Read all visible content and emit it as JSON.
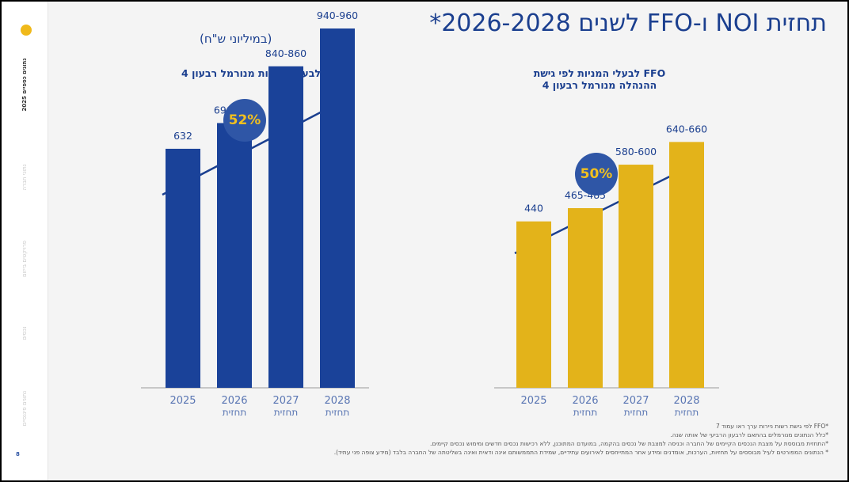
{
  "page": {
    "title": "תחזית NOI ו-FFO לשנים 2026-2028*",
    "subtitle": "(במיליוני ש\"ח)",
    "page_number": "8"
  },
  "sidebar": {
    "items": [
      {
        "label": "נתונים כספיים 2025"
      },
      {
        "label": "נתוני חברה"
      },
      {
        "label": "פרויקטים בייזום"
      },
      {
        "label": "נכסים"
      },
      {
        "label": "נתונים פיננסיים"
      }
    ]
  },
  "colors": {
    "noi": "#1a4299",
    "ffo": "#e3b31a",
    "text": "#1b3f8f",
    "badge": "#2f56a6"
  },
  "charts": {
    "noi": {
      "title": "NOI לבעלי המניות מנורמל רבעון 4",
      "growth_badge": "52%"
    },
    "ffo": {
      "title_line1": "FFO לבעלי המניות לפי גישת",
      "title_line2": "ההנהלה מנורמל רבעון 4",
      "growth_badge": "50%"
    }
  },
  "chart_data": [
    {
      "type": "bar",
      "title": "NOI לבעלי המניות מנורמל רבעון 4",
      "categories": [
        "2025",
        "2026",
        "2027",
        "2028"
      ],
      "sublabels": [
        "",
        "תחזית",
        "תחזית",
        "תחזית"
      ],
      "values": [
        632,
        700,
        850,
        950
      ],
      "value_labels": [
        "632",
        "690-710",
        "840-860",
        "940-960"
      ],
      "annotation": "52%"
    },
    {
      "type": "bar",
      "title": "FFO לבעלי המניות לפי גישת ההנהלה מנורמל רבעון 4",
      "categories": [
        "2025",
        "2026",
        "2027",
        "2028"
      ],
      "sublabels": [
        "",
        "תחזית",
        "תחזית",
        "תחזית"
      ],
      "values": [
        440,
        475,
        590,
        650
      ],
      "value_labels": [
        "440",
        "465-485",
        "580-600",
        "640-660"
      ],
      "annotation": "50%"
    }
  ],
  "footnotes": [
    "*FFO לפי גישת רשות ניירות ערך ראו עמוד 7",
    "*כלל הנתונים מנורמלים בהתאם לרבעון הרביעי של אותה שנה.",
    "*התחזית מבוססת על מצבת הנכסים הקיימים של החברה וכניסה למצבת של נכסים בהקמה, במועדם המתוכנן, ללא רכישות נכסים חדשים ומימוש נכסים קיימים.",
    "* הנתונים המפורטים לעיל מבוססים על תחזיות, הערכות, אומדנים ומידע אחר המתייחסים לאירועים עתידיים, שמידת התממשותם אינה ודאית ואינה בשליטתה של החברה בלבד (מידע צופה פני עתיד)."
  ]
}
